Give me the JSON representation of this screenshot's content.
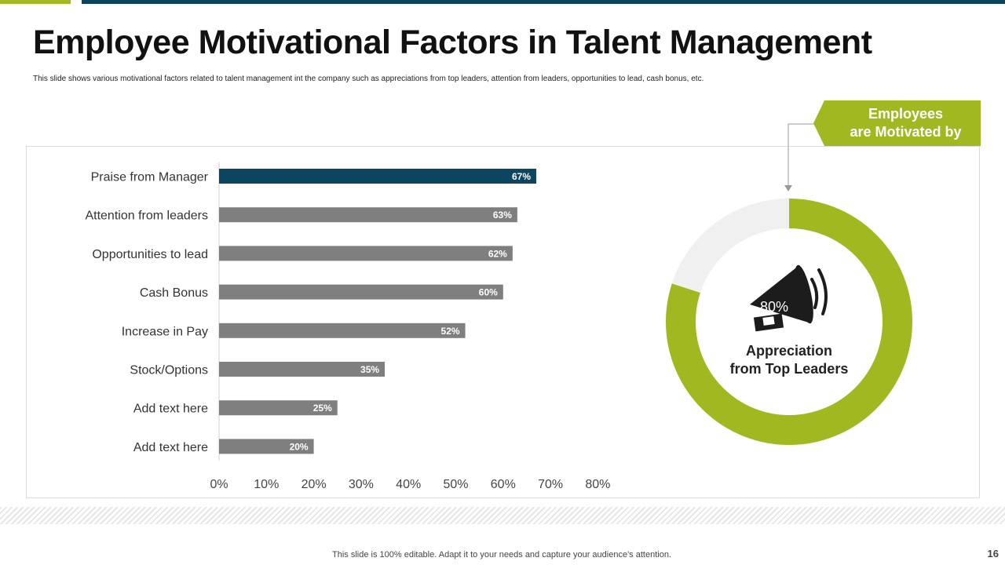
{
  "slide": {
    "title": "Employee Motivational Factors in Talent Management",
    "subtitle": "This slide shows various motivational factors related to talent management int the company such as appreciations from top leaders, attention from leaders, opportunities to lead, cash bonus, etc.",
    "footer": "This slide is 100% editable. Adapt it to your needs and capture your audience's attention.",
    "page_number": "16"
  },
  "colors": {
    "green": "#a2b821",
    "navy": "#0b4560",
    "bar_gray": "#7f7f7f",
    "donut_rest": "#f0f0f0"
  },
  "callout": {
    "text_line1": "Employees",
    "text_line2": "are Motivated by"
  },
  "donut": {
    "percent": "80%",
    "label_line1": "Appreciation",
    "label_line2": "from Top Leaders",
    "icon": "megaphone-icon"
  },
  "chart_data": [
    {
      "type": "bar",
      "orientation": "horizontal",
      "categories": [
        "Praise from Manager",
        "Attention from leaders",
        "Opportunities to lead",
        "Cash Bonus",
        "Increase in Pay",
        "Stock/Options",
        "Add text here",
        "Add text here"
      ],
      "values": [
        67,
        63,
        62,
        60,
        52,
        35,
        25,
        20
      ],
      "data_labels": [
        "67%",
        "63%",
        "62%",
        "60%",
        "52%",
        "35%",
        "25%",
        "20%"
      ],
      "xlim": [
        0,
        80
      ],
      "xticks": [
        "0%",
        "10%",
        "20%",
        "30%",
        "40%",
        "50%",
        "60%",
        "70%",
        "80%"
      ],
      "grid": false,
      "highlight_index": 0
    },
    {
      "type": "pie",
      "style": "donut",
      "slices": [
        {
          "label": "Appreciation from Top Leaders",
          "value": 80
        },
        {
          "label": "",
          "value": 20
        }
      ]
    }
  ]
}
